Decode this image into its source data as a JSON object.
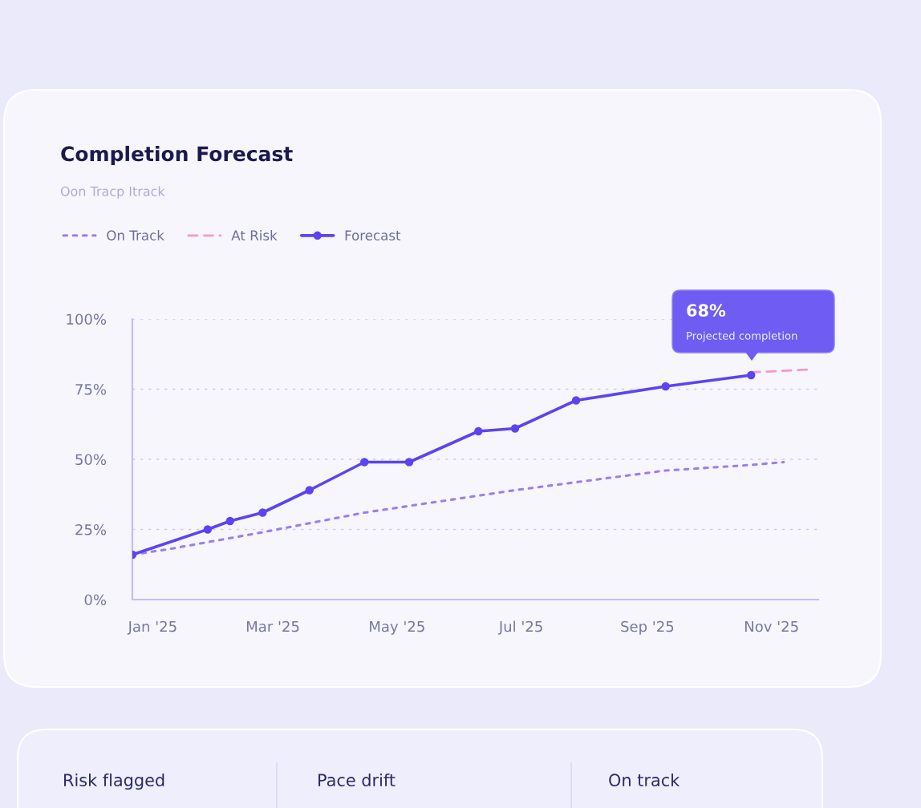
{
  "chart_data": {
    "type": "line",
    "title": "Completion Forecast",
    "subtitle": "Oon Tracp Itrack",
    "xlim": [
      "2024-12-22",
      "2025-11-24"
    ],
    "xticks": [
      {
        "value": "2025-01-01",
        "label": "Jan '25"
      },
      {
        "value": "2025-03-01",
        "label": "Mar '25"
      },
      {
        "value": "2025-05-01",
        "label": "May '25"
      },
      {
        "value": "2025-07-01",
        "label": "Jul '25"
      },
      {
        "value": "2025-09-01",
        "label": "Sep '25"
      },
      {
        "value": "2025-11-01",
        "label": "Nov '25"
      }
    ],
    "ylim": [
      0,
      100
    ],
    "yticks": [
      {
        "value": 0,
        "label": "0%"
      },
      {
        "value": 25,
        "label": "25%"
      },
      {
        "value": 50,
        "label": "50%"
      },
      {
        "value": 75,
        "label": "75%"
      },
      {
        "value": 100,
        "label": "100%"
      }
    ],
    "grid": "y",
    "legend": "top left",
    "series": [
      {
        "name": "On Track",
        "color": "#9c7ef0",
        "line_style": "dotted",
        "marker": "none",
        "x": [
          "2024-12-22",
          "2025-01-09",
          "2025-02-24",
          "2025-04-15",
          "2025-06-28",
          "2025-09-10",
          "2025-10-22",
          "2025-11-07"
        ],
        "values": [
          16,
          18,
          24,
          31,
          39,
          46,
          48,
          49
        ]
      },
      {
        "name": "At Risk",
        "color": "#f29ac8",
        "line_style": "dashed",
        "marker": "none",
        "x": [
          "2025-10-22",
          "2025-11-20"
        ],
        "values": [
          81,
          82
        ]
      },
      {
        "name": "Forecast",
        "color": "#5b45f0",
        "line_style": "solid",
        "marker": "circle",
        "x": [
          "2024-12-22",
          "2025-01-28",
          "2025-02-08",
          "2025-02-24",
          "2025-03-19",
          "2025-04-15",
          "2025-05-07",
          "2025-06-10",
          "2025-06-28",
          "2025-07-28",
          "2025-09-10",
          "2025-10-22"
        ],
        "values": [
          16,
          25,
          28,
          31,
          39,
          49,
          49,
          60,
          61,
          71,
          76,
          80
        ]
      }
    ],
    "annotations": [
      "68%",
      "Projected completion",
      "Risk flagged",
      "Pace drift",
      "On track"
    ]
  }
}
